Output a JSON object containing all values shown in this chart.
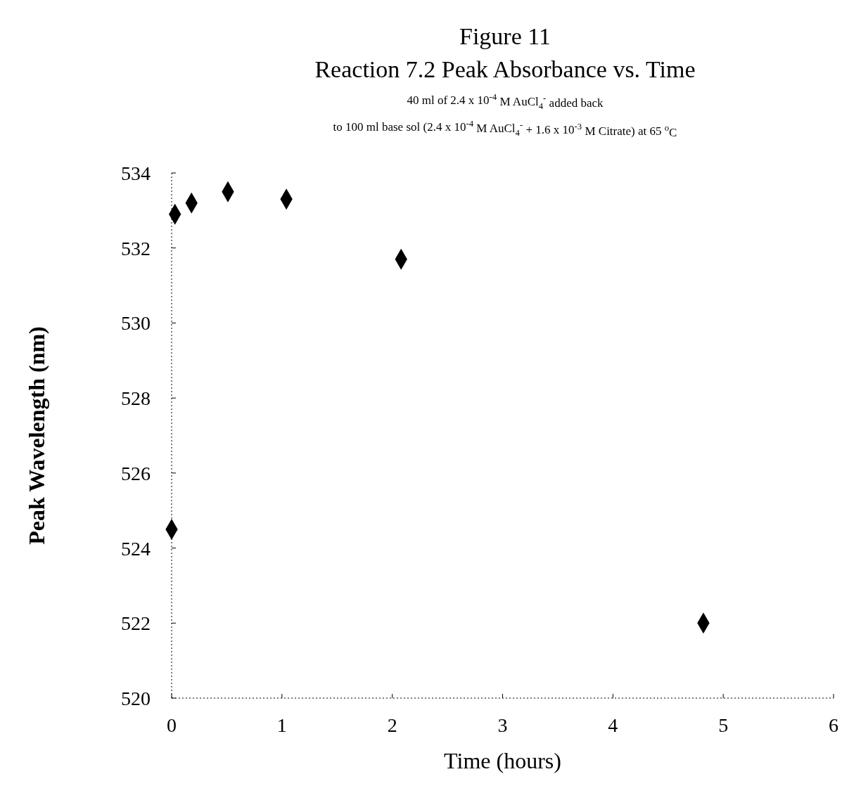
{
  "chart_data": {
    "type": "scatter",
    "title": "Figure 11",
    "subtitle": "Reaction 7.2 Peak Absorbance vs. Time",
    "annotations": [
      "40 ml of 2.4 x 10$^{-4}$ M AuCl$_{4}$$^{-}$ added back",
      "to 100 ml base sol (2.4 x 10$^{-4}$ M AuCl$_{4}$$^{-}$ + 1.6 x 10$^{-3}$ M Citrate) at 65 $^{o}$C"
    ],
    "xlabel": "Time  (hours)",
    "ylabel": "Peak Wavelength (nm)",
    "x": [
      0.03,
      0.18,
      0.51,
      1.04,
      2.08,
      0,
      4.82
    ],
    "series": [
      {
        "color": "#000000",
        "values": [
          532.9,
          533.2,
          533.5,
          533.3,
          531.7,
          524.5,
          522.0
        ]
      }
    ],
    "xlim": [
      0,
      6
    ],
    "xticks": [
      0,
      1,
      2,
      3,
      4,
      5,
      6
    ],
    "ylim": [
      520,
      534
    ],
    "yticks": [
      520,
      522,
      524,
      526,
      528,
      530,
      532,
      534
    ],
    "marker": "diamond",
    "grid": false
  }
}
